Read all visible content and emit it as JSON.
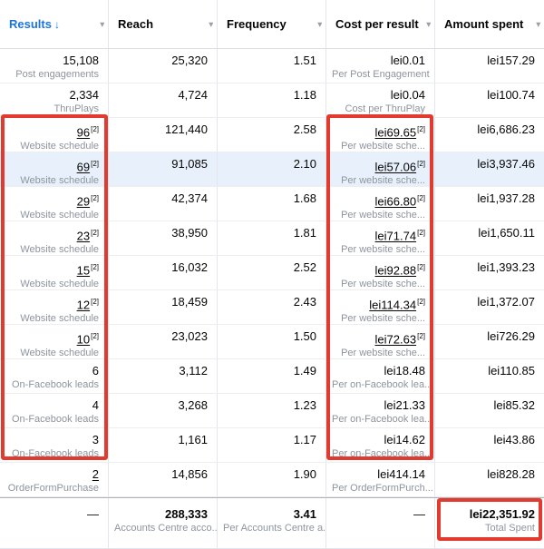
{
  "colors": {
    "accent_blue": "#1b74e4",
    "annotation_red": "#e23a2e",
    "highlight_row_blue": "#e8f1fb",
    "sublabel_gray": "#8d949e"
  },
  "icons": {
    "caret_down": "▾",
    "sort_desc_arrow": "↓"
  },
  "table": {
    "columns": [
      {
        "label": "Results",
        "sorted_desc": true
      },
      {
        "label": "Reach"
      },
      {
        "label": "Frequency"
      },
      {
        "label": "Cost per result"
      },
      {
        "label": "Amount spent"
      }
    ],
    "rows": [
      {
        "results": "15,108",
        "results_sub": "Post engagements",
        "results_link": false,
        "results_ref": "",
        "reach": "25,320",
        "frequency": "1.51",
        "cost": "lei0.01",
        "cost_sub": "Per Post Engagement",
        "cost_link": false,
        "cost_ref": "",
        "spent": "lei157.29",
        "highlight": false
      },
      {
        "results": "2,334",
        "results_sub": "ThruPlays",
        "results_link": false,
        "results_ref": "",
        "reach": "4,724",
        "frequency": "1.18",
        "cost": "lei0.04",
        "cost_sub": "Cost per ThruPlay",
        "cost_link": false,
        "cost_ref": "",
        "spent": "lei100.74",
        "highlight": false
      },
      {
        "results": "96",
        "results_sub": "Website schedule",
        "results_link": true,
        "results_ref": "[2]",
        "reach": "121,440",
        "frequency": "2.58",
        "cost": "lei69.65",
        "cost_sub": "Per website sche...",
        "cost_link": true,
        "cost_ref": "[2]",
        "spent": "lei6,686.23",
        "highlight": false
      },
      {
        "results": "69",
        "results_sub": "Website schedule",
        "results_link": true,
        "results_ref": "[2]",
        "reach": "91,085",
        "frequency": "2.10",
        "cost": "lei57.06",
        "cost_sub": "Per website sche...",
        "cost_link": true,
        "cost_ref": "[2]",
        "spent": "lei3,937.46",
        "highlight": true
      },
      {
        "results": "29",
        "results_sub": "Website schedule",
        "results_link": true,
        "results_ref": "[2]",
        "reach": "42,374",
        "frequency": "1.68",
        "cost": "lei66.80",
        "cost_sub": "Per website sche...",
        "cost_link": true,
        "cost_ref": "[2]",
        "spent": "lei1,937.28",
        "highlight": false
      },
      {
        "results": "23",
        "results_sub": "Website schedule",
        "results_link": true,
        "results_ref": "[2]",
        "reach": "38,950",
        "frequency": "1.81",
        "cost": "lei71.74",
        "cost_sub": "Per website sche...",
        "cost_link": true,
        "cost_ref": "[2]",
        "spent": "lei1,650.11",
        "highlight": false
      },
      {
        "results": "15",
        "results_sub": "Website schedule",
        "results_link": true,
        "results_ref": "[2]",
        "reach": "16,032",
        "frequency": "2.52",
        "cost": "lei92.88",
        "cost_sub": "Per website sche...",
        "cost_link": true,
        "cost_ref": "[2]",
        "spent": "lei1,393.23",
        "highlight": false
      },
      {
        "results": "12",
        "results_sub": "Website schedule",
        "results_link": true,
        "results_ref": "[2]",
        "reach": "18,459",
        "frequency": "2.43",
        "cost": "lei114.34",
        "cost_sub": "Per website sche...",
        "cost_link": true,
        "cost_ref": "[2]",
        "spent": "lei1,372.07",
        "highlight": false
      },
      {
        "results": "10",
        "results_sub": "Website schedule",
        "results_link": true,
        "results_ref": "[2]",
        "reach": "23,023",
        "frequency": "1.50",
        "cost": "lei72.63",
        "cost_sub": "Per website sche...",
        "cost_link": true,
        "cost_ref": "[2]",
        "spent": "lei726.29",
        "highlight": false
      },
      {
        "results": "6",
        "results_sub": "On-Facebook leads",
        "results_link": false,
        "results_ref": "",
        "reach": "3,112",
        "frequency": "1.49",
        "cost": "lei18.48",
        "cost_sub": "Per on-Facebook lea...",
        "cost_link": false,
        "cost_ref": "",
        "spent": "lei110.85",
        "highlight": false
      },
      {
        "results": "4",
        "results_sub": "On-Facebook leads",
        "results_link": false,
        "results_ref": "",
        "reach": "3,268",
        "frequency": "1.23",
        "cost": "lei21.33",
        "cost_sub": "Per on-Facebook lea...",
        "cost_link": false,
        "cost_ref": "",
        "spent": "lei85.32",
        "highlight": false
      },
      {
        "results": "3",
        "results_sub": "On-Facebook leads",
        "results_link": false,
        "results_ref": "",
        "reach": "1,161",
        "frequency": "1.17",
        "cost": "lei14.62",
        "cost_sub": "Per on-Facebook lea...",
        "cost_link": false,
        "cost_ref": "",
        "spent": "lei43.86",
        "highlight": false
      },
      {
        "results": "2",
        "results_sub": "OrderFormPurchase",
        "results_link": true,
        "results_ref": "",
        "reach": "14,856",
        "frequency": "1.90",
        "cost": "lei414.14",
        "cost_sub": "Per OrderFormPurch...",
        "cost_link": false,
        "cost_ref": "",
        "spent": "lei828.28",
        "highlight": false
      }
    ],
    "footer": {
      "results": "—",
      "reach": "288,333",
      "reach_sub": "Accounts Centre acco...",
      "frequency": "3.41",
      "frequency_sub": "Per Accounts Centre a...",
      "cost": "—",
      "spent": "lei22,351.92",
      "spent_sub": "Total Spent"
    }
  }
}
